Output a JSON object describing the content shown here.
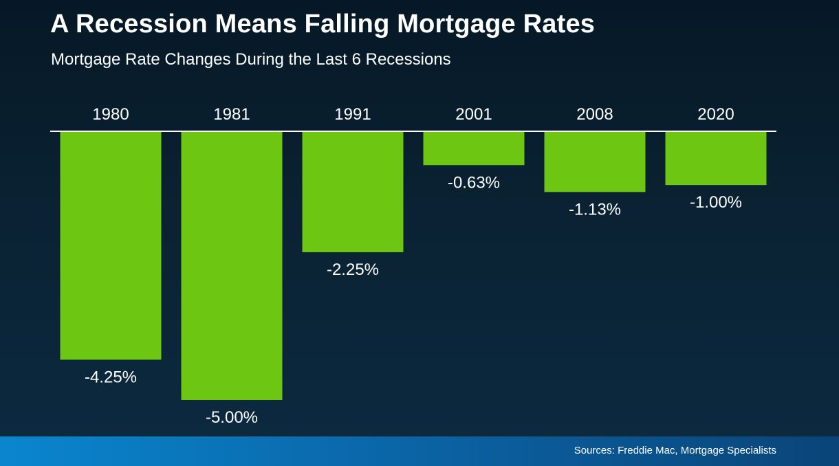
{
  "title": "A Recession Means Falling Mortgage Rates",
  "subtitle": "Mortgage Rate Changes During the Last 6 Recessions",
  "footer": {
    "sources": "Sources: Freddie Mac, Mortgage Specialists"
  },
  "colors": {
    "bar": "#6cc612",
    "axis": "#ffffff",
    "text": "#ffffff"
  },
  "chart_data": {
    "type": "bar",
    "title": "A Recession Means Falling Mortgage Rates",
    "subtitle": "Mortgage Rate Changes During the Last 6 Recessions",
    "categories": [
      "1980",
      "1981",
      "1991",
      "2001",
      "2008",
      "2020"
    ],
    "values": [
      -4.25,
      -5.0,
      -2.25,
      -0.63,
      -1.13,
      -1.0
    ],
    "value_labels": [
      "-4.25%",
      "-5.00%",
      "-2.25%",
      "-0.63%",
      "-1.13%",
      "-1.00%"
    ],
    "xlabel": "",
    "ylabel": "",
    "ylim": [
      -5.0,
      0
    ],
    "category_labels_position": "top",
    "grid": false,
    "legend": "none"
  }
}
